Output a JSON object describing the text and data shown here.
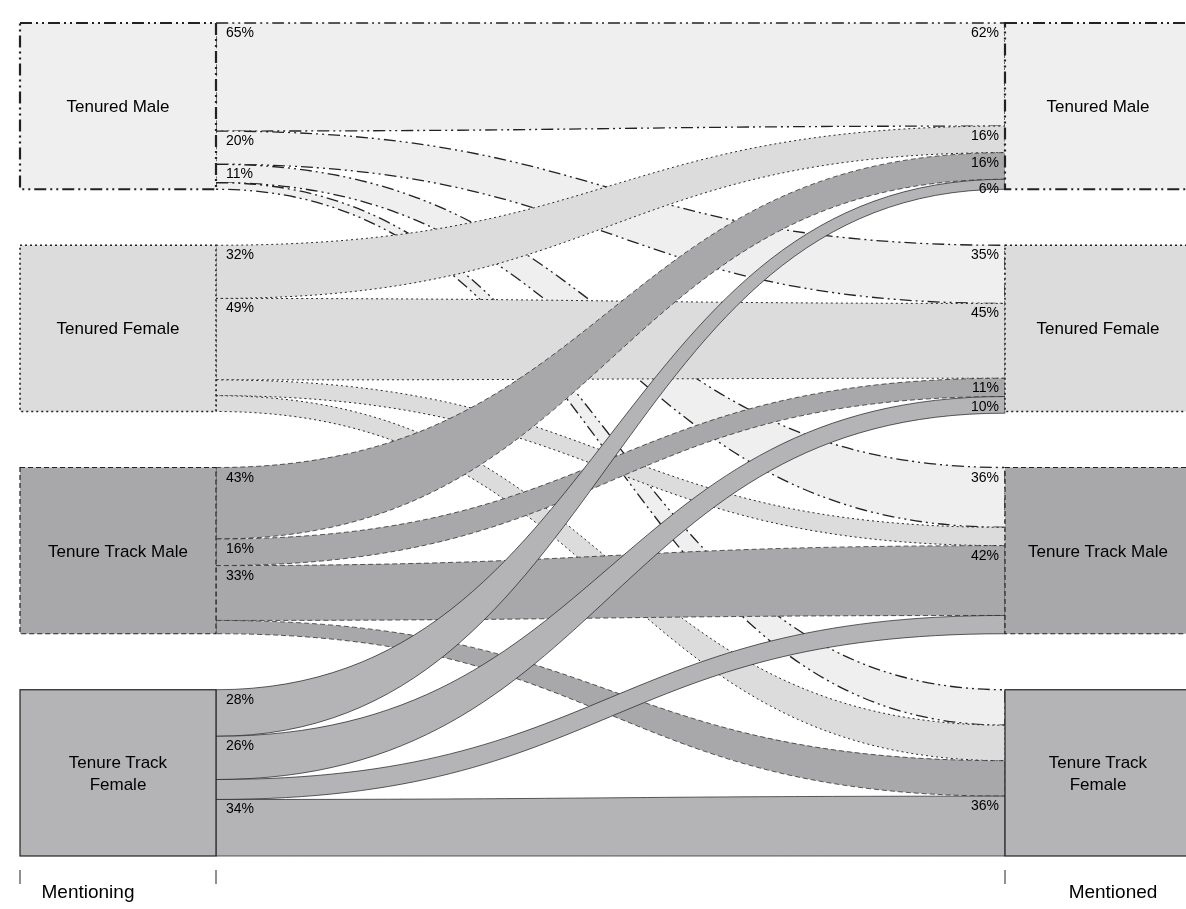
{
  "chart_data": {
    "type": "other",
    "categories": [
      "Mentioning",
      "Mentioned"
    ],
    "y_categories": [
      "Tenured Male",
      "Tenured Female",
      "Tenure Track Male",
      "Tenure Track Female"
    ],
    "y2_categories": [
      "Tenured Male",
      "Tenured Female",
      "Tenure Track Male",
      "Tenure Track Female"
    ],
    "colors": [
      "#efeff0",
      "#dcdcdd",
      "#a8a8aa",
      "#b4b4b6"
    ],
    "series": [
      {
        "color": "#efeff0",
        "values": [
          65,
          62
        ],
        "value_labels": [
          "65%",
          "62%"
        ]
      },
      {
        "color": "#efeff0",
        "values": [
          20,
          35
        ],
        "value_labels": [
          "20%",
          "35%"
        ]
      },
      {
        "color": "#efeff0",
        "values": [
          11,
          36
        ],
        "value_labels": [
          "11%",
          "36%"
        ]
      },
      {
        "color": "#efeff0",
        "values": [
          null,
          null
        ],
        "value_labels": [
          null,
          null
        ]
      },
      {
        "color": "#dcdcdd",
        "values": [
          32,
          16
        ],
        "value_labels": [
          "32%",
          "16%"
        ]
      },
      {
        "color": "#dcdcdd",
        "values": [
          49,
          45
        ],
        "value_labels": [
          "49%",
          "45%"
        ]
      },
      {
        "color": "#dcdcdd",
        "values": [
          null,
          null
        ],
        "value_labels": [
          null,
          null
        ]
      },
      {
        "color": "#dcdcdd",
        "values": [
          null,
          null
        ],
        "value_labels": [
          null,
          null
        ]
      },
      {
        "color": "#a8a8aa",
        "values": [
          43,
          16
        ],
        "value_labels": [
          "43%",
          "16%"
        ]
      },
      {
        "color": "#a8a8aa",
        "values": [
          16,
          11
        ],
        "value_labels": [
          "16%",
          "11%"
        ]
      },
      {
        "color": "#a8a8aa",
        "values": [
          33,
          42
        ],
        "value_labels": [
          "33%",
          "42%"
        ]
      },
      {
        "color": "#a8a8aa",
        "values": [
          null,
          null
        ],
        "value_labels": [
          null,
          null
        ]
      },
      {
        "color": "#b4b4b6",
        "values": [
          28,
          6
        ],
        "value_labels": [
          "28%",
          "6%"
        ]
      },
      {
        "color": "#b4b4b6",
        "values": [
          26,
          10
        ],
        "value_labels": [
          "26%",
          "10%"
        ]
      },
      {
        "color": "#b4b4b6",
        "values": [
          null,
          null
        ],
        "value_labels": [
          null,
          null
        ]
      },
      {
        "color": "#b4b4b6",
        "values": [
          34,
          36
        ],
        "value_labels": [
          "34%",
          "36%"
        ]
      }
    ]
  }
}
